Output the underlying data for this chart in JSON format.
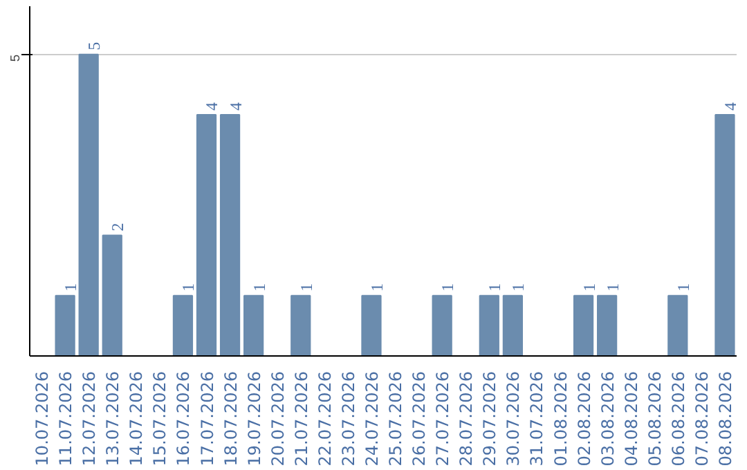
{
  "chart_data": {
    "type": "bar",
    "categories": [
      "10.07.2026",
      "11.07.2026",
      "12.07.2026",
      "13.07.2026",
      "14.07.2026",
      "15.07.2026",
      "16.07.2026",
      "17.07.2026",
      "18.07.2026",
      "19.07.2026",
      "20.07.2026",
      "21.07.2026",
      "22.07.2026",
      "23.07.2026",
      "24.07.2026",
      "25.07.2026",
      "26.07.2026",
      "27.07.2026",
      "28.07.2026",
      "29.07.2026",
      "30.07.2026",
      "31.07.2026",
      "01.08.2026",
      "02.08.2026",
      "03.08.2026",
      "04.08.2026",
      "05.08.2026",
      "06.08.2026",
      "07.08.2026",
      "08.08.2026"
    ],
    "values": [
      0,
      1,
      5,
      2,
      0,
      0,
      1,
      4,
      4,
      1,
      0,
      1,
      0,
      0,
      1,
      0,
      0,
      1,
      0,
      1,
      1,
      0,
      0,
      1,
      1,
      0,
      0,
      1,
      0,
      4
    ],
    "value_labels": [
      null,
      "1",
      "5",
      "2",
      null,
      null,
      "1",
      "4",
      "4",
      "1",
      null,
      "1",
      null,
      null,
      "1",
      null,
      null,
      "1",
      null,
      "1",
      "1",
      null,
      null,
      "1",
      "1",
      null,
      null,
      "1",
      null,
      "4"
    ],
    "color": "#6b8cae",
    "ylim": [
      0,
      5.8
    ],
    "yticks": [
      5
    ],
    "grid": "y"
  }
}
